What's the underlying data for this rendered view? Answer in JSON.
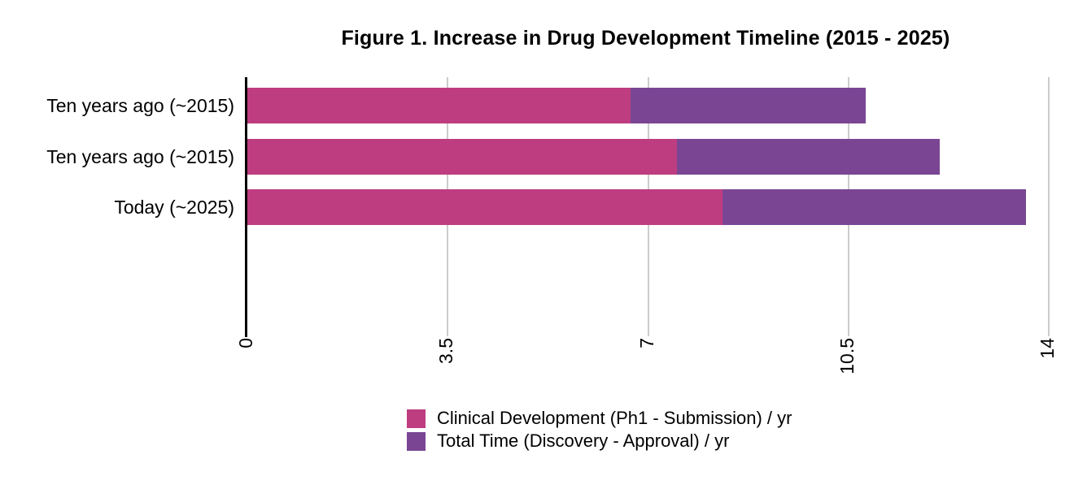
{
  "title": "Figure 1. Increase in Drug Development Timeline (2015 - 2025)",
  "colors": {
    "clinical": "#be3d80",
    "total": "#7a4694",
    "axis": "#000000",
    "gridline": "#cccccc",
    "background": "#ffffff",
    "text": "#000000"
  },
  "chart_data": {
    "type": "bar",
    "orientation": "horizontal",
    "stacked": true,
    "title": "Figure 1. Increase in Drug Development Timeline (2015 - 2025)",
    "categories": [
      "Ten years ago (~2015)",
      "Ten years ago (~2015)",
      "Today (~2025)"
    ],
    "series": [
      {
        "name": "Clinical Development (Ph1 - Submission) / yr",
        "color": "#be3d80",
        "values": [
          6.7,
          7.5,
          8.3
        ]
      },
      {
        "name": "Total Time (Discovery - Approval) / yr",
        "color": "#7a4694",
        "values": [
          10.8,
          12.1,
          13.6
        ],
        "note": "bar total length = this value; purple segment spans from clinical value to total value"
      }
    ],
    "xlabel": "",
    "ylabel": "",
    "xlim": [
      0,
      14
    ],
    "xticks": [
      0,
      3.5,
      7,
      10.5,
      14
    ],
    "tick_labels": [
      "0",
      "3.5",
      "7",
      "10.5",
      "14"
    ],
    "tick_label_rotation_deg": -90,
    "grid": true,
    "legend_position": "bottom"
  },
  "legend": {
    "items": [
      {
        "label": "Clinical Development (Ph1 - Submission) / yr",
        "color": "#be3d80"
      },
      {
        "label": "Total Time (Discovery - Approval) / yr",
        "color": "#7a4694"
      }
    ]
  }
}
